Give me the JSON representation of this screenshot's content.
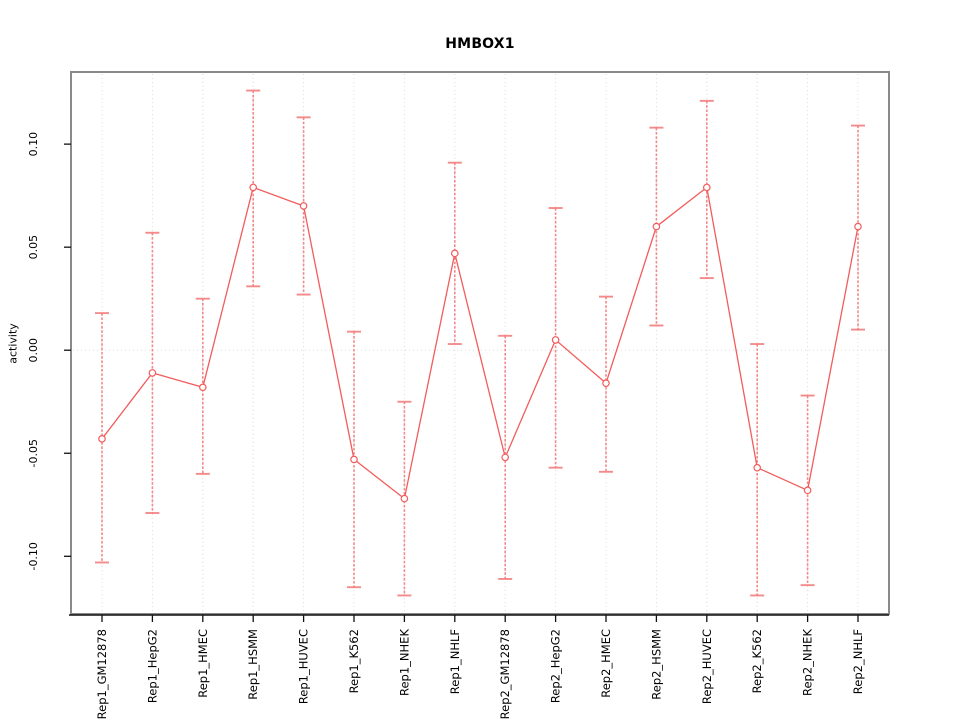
{
  "chart_data": {
    "type": "line",
    "title": "HMBOX1",
    "xlabel": "",
    "ylabel": "activity",
    "ylim": [
      -0.128,
      0.135
    ],
    "ytick_values": [
      -0.1,
      -0.05,
      0.0,
      0.05,
      0.1
    ],
    "ytick_labels": [
      "-0.10",
      "-0.05",
      "0.00",
      "0.05",
      "0.10"
    ],
    "grid": "dotted vertical gridline at each category, dotted horizontal line at y=0",
    "legend": "none",
    "marker": "open-circle",
    "error_bars": true,
    "categories": [
      "Rep1_GM12878",
      "Rep1_HepG2",
      "Rep1_HMEC",
      "Rep1_HSMM",
      "Rep1_HUVEC",
      "Rep1_K562",
      "Rep1_NHEK",
      "Rep1_NHLF",
      "Rep2_GM12878",
      "Rep2_HepG2",
      "Rep2_HMEC",
      "Rep2_HSMM",
      "Rep2_HUVEC",
      "Rep2_K562",
      "Rep2_NHEK",
      "Rep2_NHLF"
    ],
    "series": [
      {
        "name": "activity",
        "values": [
          -0.043,
          -0.011,
          -0.018,
          0.079,
          0.07,
          -0.053,
          -0.072,
          0.047,
          -0.052,
          0.005,
          -0.016,
          0.06,
          0.079,
          -0.057,
          -0.068,
          0.06
        ],
        "ci_low": [
          -0.103,
          -0.079,
          -0.06,
          0.031,
          0.027,
          -0.115,
          -0.119,
          0.003,
          -0.111,
          -0.057,
          -0.059,
          0.012,
          0.035,
          -0.119,
          -0.114,
          0.01
        ],
        "ci_high": [
          0.018,
          0.057,
          0.025,
          0.126,
          0.113,
          0.009,
          -0.025,
          0.091,
          0.007,
          0.069,
          0.026,
          0.108,
          0.121,
          0.003,
          -0.022,
          0.109
        ]
      }
    ],
    "colors": {
      "line": "#f25c5c",
      "point_fill": "#ffffff",
      "error_bar": "#f37e7e",
      "gridline": "#dcdcdc",
      "frame": "#8a8a8a",
      "axis": "#111111",
      "text": "#000000",
      "background": "#ffffff"
    }
  }
}
